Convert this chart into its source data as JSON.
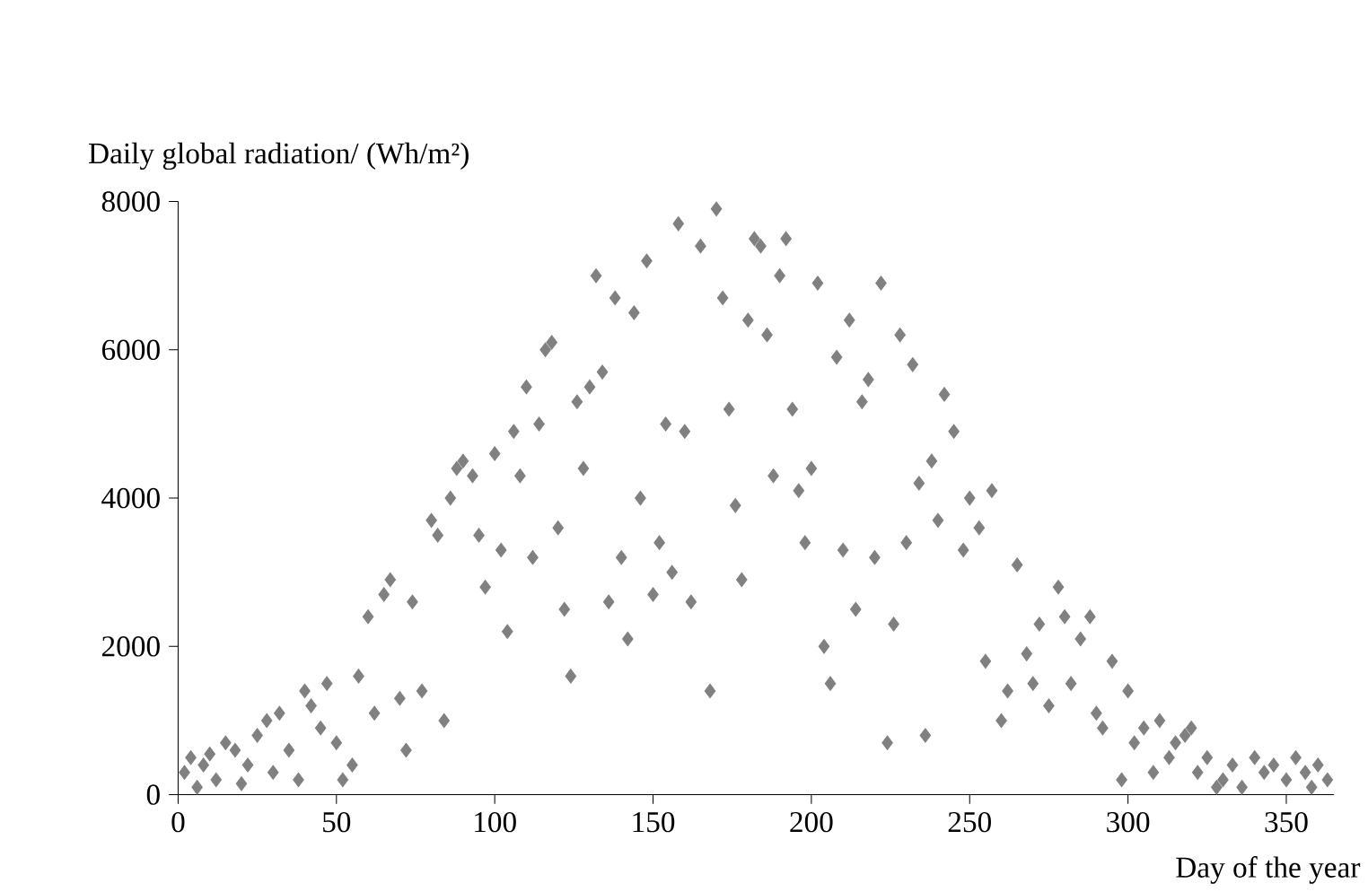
{
  "chart_data": {
    "type": "scatter",
    "xlabel": "Day of the year",
    "ylabel": "Daily global radiation/ (Wh/m²)",
    "xlim": [
      0,
      365
    ],
    "ylim": [
      0,
      8000
    ],
    "xticks": [
      0,
      50,
      100,
      150,
      200,
      250,
      300,
      350
    ],
    "yticks": [
      0,
      2000,
      4000,
      6000,
      8000
    ],
    "marker": "diamond",
    "series": [
      {
        "color": "#808080",
        "x": [
          2,
          4,
          6,
          8,
          10,
          12,
          15,
          18,
          20,
          22,
          25,
          28,
          30,
          32,
          35,
          38,
          40,
          42,
          45,
          47,
          50,
          52,
          55,
          57,
          60,
          62,
          65,
          67,
          70,
          72,
          74,
          77,
          80,
          82,
          84,
          86,
          88,
          90,
          93,
          95,
          97,
          100,
          102,
          104,
          106,
          108,
          110,
          112,
          114,
          116,
          118,
          120,
          122,
          124,
          126,
          128,
          130,
          132,
          134,
          136,
          138,
          140,
          142,
          144,
          146,
          148,
          150,
          152,
          154,
          156,
          158,
          160,
          162,
          165,
          168,
          170,
          172,
          174,
          176,
          178,
          180,
          182,
          184,
          186,
          188,
          190,
          192,
          194,
          196,
          198,
          200,
          202,
          204,
          206,
          208,
          210,
          212,
          214,
          216,
          218,
          220,
          222,
          224,
          226,
          228,
          230,
          232,
          234,
          236,
          238,
          240,
          242,
          245,
          248,
          250,
          253,
          255,
          257,
          260,
          262,
          265,
          268,
          270,
          272,
          275,
          278,
          280,
          282,
          285,
          288,
          290,
          292,
          295,
          298,
          300,
          302,
          305,
          308,
          310,
          313,
          315,
          318,
          320,
          322,
          325,
          328,
          330,
          333,
          336,
          340,
          343,
          346,
          350,
          353,
          356,
          358,
          360,
          363
        ],
        "values": [
          300,
          500,
          100,
          400,
          550,
          200,
          700,
          600,
          150,
          400,
          800,
          1000,
          300,
          1100,
          600,
          200,
          1400,
          1200,
          900,
          1500,
          700,
          200,
          400,
          1600,
          2400,
          1100,
          2700,
          2900,
          1300,
          600,
          2600,
          1400,
          3700,
          3500,
          1000,
          4000,
          4400,
          4500,
          4300,
          3500,
          2800,
          4600,
          3300,
          2200,
          4900,
          4300,
          5500,
          3200,
          5000,
          6000,
          6100,
          3600,
          2500,
          1600,
          5300,
          4400,
          5500,
          7000,
          5700,
          2600,
          6700,
          3200,
          2100,
          6500,
          4000,
          7200,
          2700,
          3400,
          5000,
          3000,
          7700,
          4900,
          2600,
          7400,
          1400,
          7900,
          6700,
          5200,
          3900,
          2900,
          6400,
          7500,
          7400,
          6200,
          4300,
          7000,
          7500,
          5200,
          4100,
          3400,
          4400,
          6900,
          2000,
          1500,
          5900,
          3300,
          6400,
          2500,
          5300,
          5600,
          3200,
          6900,
          700,
          2300,
          6200,
          3400,
          5800,
          4200,
          800,
          4500,
          3700,
          5400,
          4900,
          3300,
          4000,
          3600,
          1800,
          4100,
          1000,
          1400,
          3100,
          1900,
          1500,
          2300,
          1200,
          2800,
          2400,
          1500,
          2100,
          2400,
          1100,
          900,
          1800,
          200,
          1400,
          700,
          900,
          300,
          1000,
          500,
          700,
          800,
          900,
          300,
          500,
          100,
          200,
          400,
          100,
          500,
          300,
          400,
          200,
          500,
          300,
          100,
          400,
          200
        ]
      }
    ]
  }
}
